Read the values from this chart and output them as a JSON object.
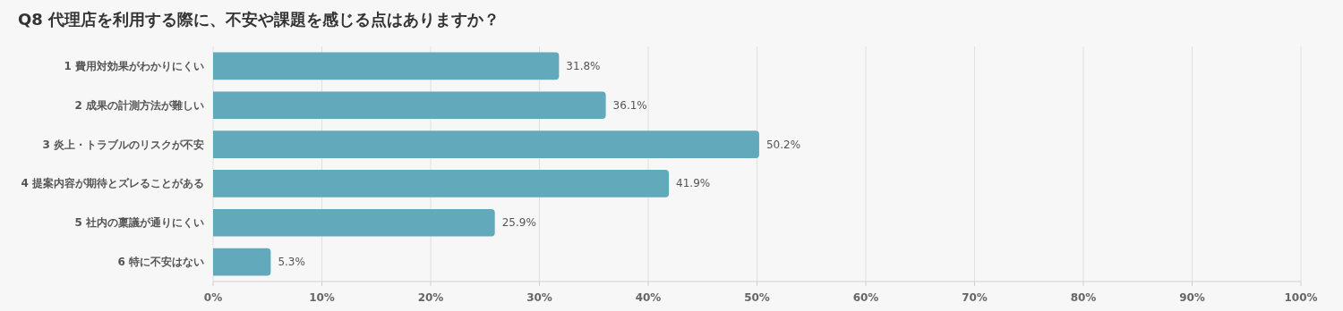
{
  "chart_data": {
    "type": "bar",
    "orientation": "horizontal",
    "title": "Q8 代理店を利用する際に、不安や課題を感じる点はありますか？",
    "categories": [
      "1 費用対効果がわかりにくい",
      "2 成果の計測方法が難しい",
      "3 炎上・トラブルのリスクが不安",
      "4 提案内容が期待とズレることがある",
      "5 社内の稟議が通りにくい",
      "6 特に不安はない"
    ],
    "values": [
      31.8,
      36.1,
      50.2,
      41.9,
      25.9,
      5.3
    ],
    "value_labels": [
      "31.8%",
      "36.1%",
      "50.2%",
      "41.9%",
      "25.9%",
      "5.3%"
    ],
    "color": "#62aabb",
    "xlim": [
      0,
      100
    ],
    "xticks": [
      {
        "value": 0,
        "label": "0%"
      },
      {
        "value": 10,
        "label": "10%"
      },
      {
        "value": 20,
        "label": "20%"
      },
      {
        "value": 30,
        "label": "30%"
      },
      {
        "value": 40,
        "label": "40%"
      },
      {
        "value": 50,
        "label": "50%"
      },
      {
        "value": 60,
        "label": "60%"
      },
      {
        "value": 70,
        "label": "70%"
      },
      {
        "value": 80,
        "label": "80%"
      },
      {
        "value": 90,
        "label": "90%"
      },
      {
        "value": 100,
        "label": "100%"
      }
    ],
    "grid": "x"
  }
}
